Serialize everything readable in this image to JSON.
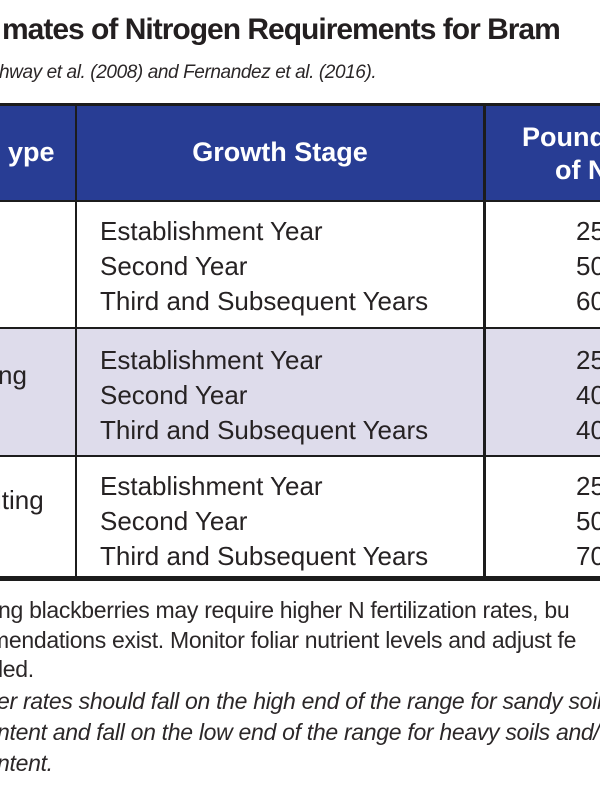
{
  "title": {
    "visible_text": "mates of Nitrogen Requirements for Bram"
  },
  "source_line": {
    "visible_text": "hway et al. (2008) and Fernandez et al. (2016)."
  },
  "table": {
    "colors": {
      "header_bg": "#283D94",
      "header_text": "#FFFFFF",
      "alt_row_bg": "#DEDCEB",
      "border": "#1C1C1C"
    },
    "header": {
      "col1_visible_fragment": "ype",
      "col2_label": "Growth Stage",
      "col3_line1_visible_fragment": "Pound",
      "col3_line2_visible_fragment": "of N"
    },
    "rows": [
      {
        "type_visible_fragment": "",
        "stages": [
          "Establishment Year",
          "Second Year",
          "Third and Subsequent Years"
        ],
        "values_visible": [
          "25",
          "50",
          "60"
        ]
      },
      {
        "type_visible_fragment": "ng",
        "stages": [
          "Establishment Year",
          "Second Year",
          "Third and Subsequent Years"
        ],
        "values_visible": [
          "25",
          "40",
          "40"
        ]
      },
      {
        "type_visible_fragment": "iting",
        "stages": [
          "Establishment Year",
          "Second Year",
          "Third and Subsequent Years"
        ],
        "values_visible": [
          "25",
          "50",
          "70"
        ]
      }
    ]
  },
  "footnotes": {
    "note1_lines": [
      "ng blackberries may require higher N fertilization rates, bu",
      "mendations exist. Monitor foliar nutrient levels and adjust fe",
      "led."
    ],
    "note2_lines": [
      "er rates should fall on the high end of the range for sandy soils",
      "ntent and fall on the low end of the range for heavy soils and/o",
      "ntent."
    ]
  }
}
